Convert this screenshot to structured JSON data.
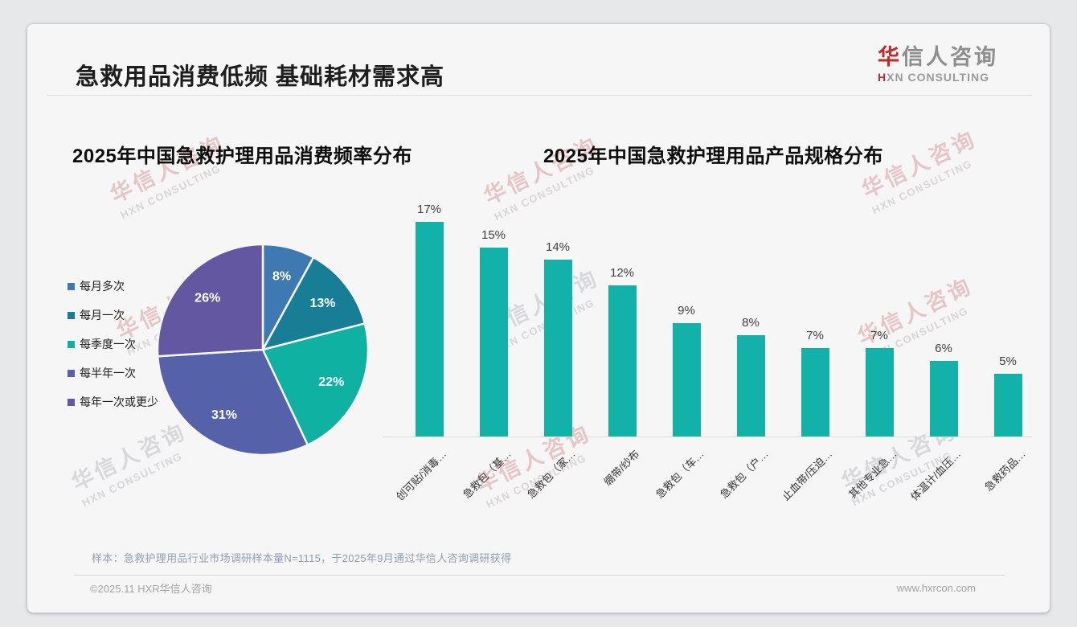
{
  "page": {
    "title": "急救用品消费低频 基础耗材需求高",
    "logo": {
      "brand_first": "华",
      "brand_rest": "信人咨询",
      "sub_first": "H",
      "sub_rest": "XN CONSULTING"
    },
    "footnote": "样本：急救护理用品行业市场调研样本量N=1115，于2025年9月通过华信人咨询调研获得",
    "footer_left": "©2025.11 HXR华信人咨询",
    "footer_right": "www.hxrcon.com",
    "watermark": {
      "line1": "华信人咨询",
      "line2": "HXN CONSULTING"
    },
    "accent_red": "#c2292b"
  },
  "chart_data": [
    {
      "type": "pie",
      "title": "2025年中国急救护理用品消费频率分布",
      "labels": [
        "每月多次",
        "每月一次",
        "每季度一次",
        "每半年一次",
        "每年一次或更少"
      ],
      "values": [
        8,
        13,
        22,
        31,
        26
      ],
      "unit": "%",
      "colors": [
        "#3e79b2",
        "#177e95",
        "#0fb1a3",
        "#5562a9",
        "#6457a2"
      ],
      "legend_position": "left",
      "start_angle_deg": -90,
      "label_style": "percent-inside-white"
    },
    {
      "type": "bar",
      "title": "2025年中国急救护理用品产品规格分布",
      "categories": [
        "创可贴/消毒…",
        "急救包（基…",
        "急救包（家…",
        "绷带/纱布",
        "急救包（车…",
        "急救包（户…",
        "止血带/压迫…",
        "其他专业急…",
        "体温计/血压…",
        "急救药品…"
      ],
      "values": [
        17,
        15,
        14,
        12,
        9,
        8,
        7,
        7,
        6,
        5
      ],
      "unit": "%",
      "bar_color": "#12b2a9",
      "ylim": [
        0,
        18
      ],
      "grid": false,
      "value_labels": true,
      "category_label_rotation_deg": 45
    }
  ]
}
